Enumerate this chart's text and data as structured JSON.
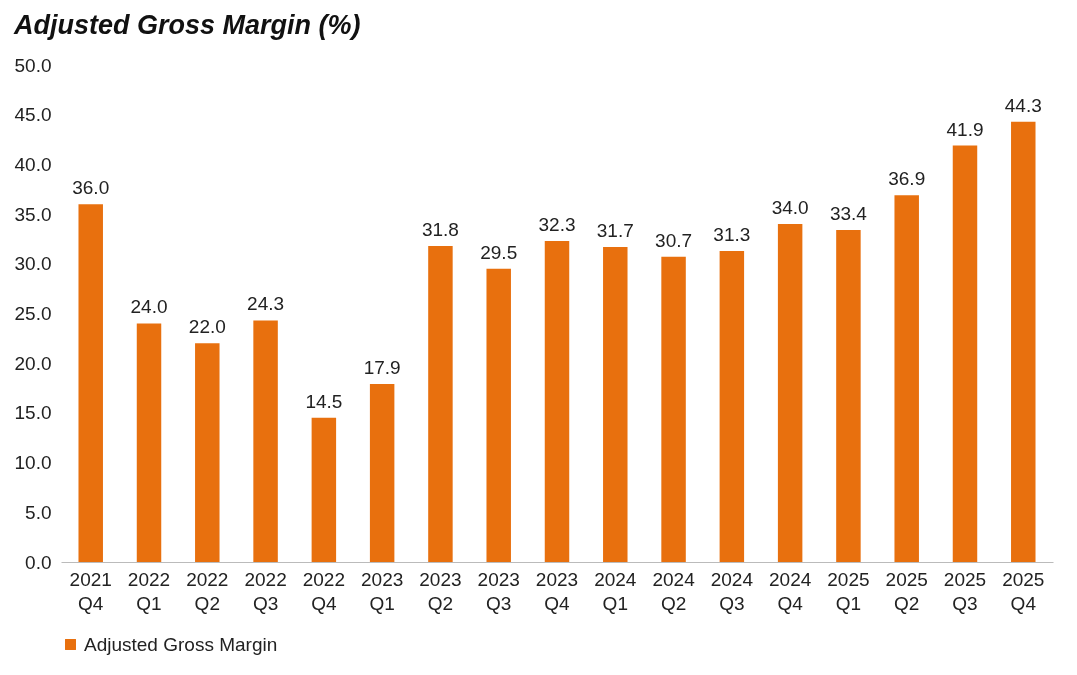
{
  "chart_data": {
    "type": "bar",
    "title": "Adjusted Gross Margin (%)",
    "categories": [
      "2021 Q4",
      "2022 Q1",
      "2022 Q2",
      "2022 Q3",
      "2022 Q4",
      "2023 Q1",
      "2023 Q2",
      "2023 Q3",
      "2023 Q4",
      "2024 Q1",
      "2024 Q2",
      "2024 Q3",
      "2024 Q4",
      "2025 Q1",
      "2025 Q2",
      "2025 Q3",
      "2025 Q4"
    ],
    "series": [
      {
        "name": "Adjusted Gross Margin",
        "color": "#e8700e",
        "values": [
          36.0,
          24.0,
          22.0,
          24.3,
          14.5,
          17.9,
          31.8,
          29.5,
          32.3,
          31.7,
          30.7,
          31.3,
          34.0,
          33.4,
          36.9,
          41.9,
          44.3
        ],
        "value_labels": [
          "36.0",
          "24.0",
          "22.0",
          "24.3",
          "14.5",
          "17.9",
          "31.8",
          "29.5",
          "32.3",
          "31.7",
          "30.7",
          "31.3",
          "34.0",
          "33.4",
          "36.9",
          "41.9",
          "44.3"
        ]
      }
    ],
    "ylim": [
      0,
      50
    ],
    "yticks": [
      {
        "value": 0,
        "label": "0.0"
      },
      {
        "value": 5,
        "label": "5.0"
      },
      {
        "value": 10,
        "label": "10.0"
      },
      {
        "value": 15,
        "label": "15.0"
      },
      {
        "value": 20,
        "label": "20.0"
      },
      {
        "value": 25,
        "label": "25.0"
      },
      {
        "value": 30,
        "label": "30.0"
      },
      {
        "value": 35,
        "label": "35.0"
      },
      {
        "value": 40,
        "label": "40.0"
      },
      {
        "value": 45,
        "label": "45.0"
      },
      {
        "value": 50,
        "label": "50.0"
      }
    ],
    "grid": false,
    "legend": "bottom"
  }
}
